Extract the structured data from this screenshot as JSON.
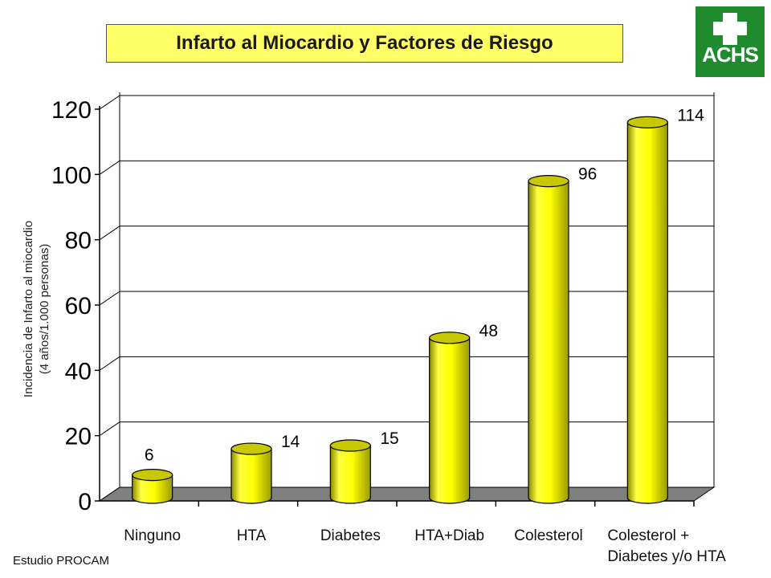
{
  "title": "Infarto al Miocardio y Factores de Riesgo",
  "logo_text": "ACHS",
  "source_note": "Estudio PROCAM",
  "chart_data": {
    "type": "bar",
    "title": "Infarto al Miocardio y Factores de Riesgo",
    "ylabel_lines": [
      "Incidencia de Infarto al miocardio",
      "(4 años/1.000 personas)"
    ],
    "xlabel": "",
    "categories": [
      [
        "Ninguno"
      ],
      [
        "HTA"
      ],
      [
        "Diabetes"
      ],
      [
        "HTA+Diab"
      ],
      [
        "Colesterol"
      ],
      [
        "Colesterol +",
        "Diabetes y/o HTA"
      ]
    ],
    "values": [
      6,
      14,
      15,
      48,
      96,
      114
    ],
    "data_labels": [
      "6",
      "14",
      "15",
      "48",
      "96",
      "114"
    ],
    "yticks": [
      "0",
      "20",
      "40",
      "60",
      "80",
      "100",
      "120"
    ],
    "ylim": [
      0,
      120
    ],
    "grid": true,
    "legend": "none",
    "bar_color": "#ffff00",
    "floor_color": "#808080"
  }
}
